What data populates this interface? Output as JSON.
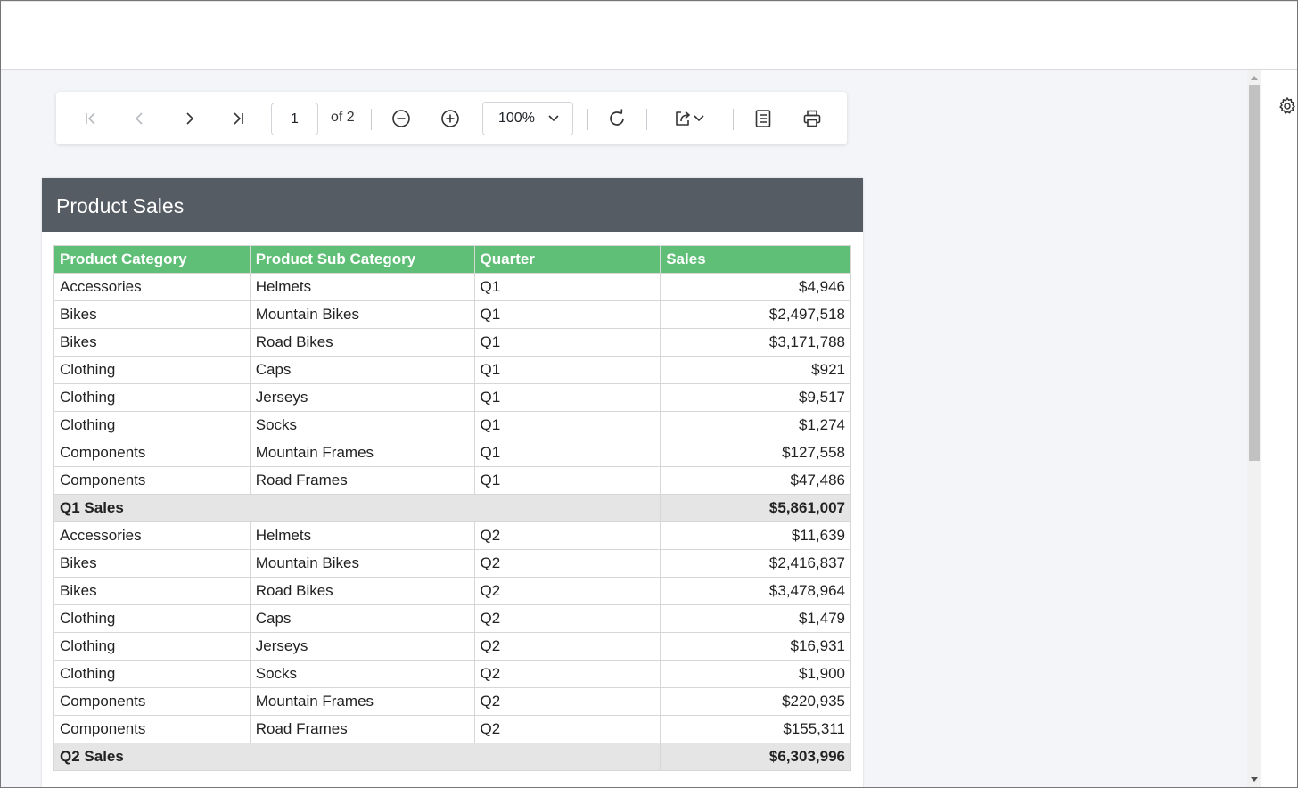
{
  "toolbar": {
    "first_icon": "first-page-icon",
    "prev_icon": "previous-page-icon",
    "next_icon": "next-page-icon",
    "last_icon": "last-page-icon",
    "page_value": "1",
    "of_pages": "of 2",
    "zoom_out_icon": "zoom-out-icon",
    "zoom_in_icon": "zoom-in-icon",
    "zoom_value": "100%",
    "refresh_icon": "refresh-icon",
    "export_icon": "export-icon",
    "print_layout_icon": "print-layout-icon",
    "print_icon": "print-icon"
  },
  "settings_icon": "gear-icon",
  "report": {
    "title": "Product Sales",
    "columns": [
      "Product Category",
      "Product Sub Category",
      "Quarter",
      "Sales"
    ],
    "rows": [
      {
        "type": "data",
        "category": "Accessories",
        "subcategory": "Helmets",
        "quarter": "Q1",
        "sales": "$4,946"
      },
      {
        "type": "data",
        "category": "Bikes",
        "subcategory": "Mountain Bikes",
        "quarter": "Q1",
        "sales": "$2,497,518"
      },
      {
        "type": "data",
        "category": "Bikes",
        "subcategory": "Road Bikes",
        "quarter": "Q1",
        "sales": "$3,171,788"
      },
      {
        "type": "data",
        "category": "Clothing",
        "subcategory": "Caps",
        "quarter": "Q1",
        "sales": "$921"
      },
      {
        "type": "data",
        "category": "Clothing",
        "subcategory": "Jerseys",
        "quarter": "Q1",
        "sales": "$9,517"
      },
      {
        "type": "data",
        "category": "Clothing",
        "subcategory": "Socks",
        "quarter": "Q1",
        "sales": "$1,274"
      },
      {
        "type": "data",
        "category": "Components",
        "subcategory": "Mountain Frames",
        "quarter": "Q1",
        "sales": "$127,558"
      },
      {
        "type": "data",
        "category": "Components",
        "subcategory": "Road Frames",
        "quarter": "Q1",
        "sales": "$47,486"
      },
      {
        "type": "subtotal",
        "label": "Q1 Sales",
        "sales": "$5,861,007"
      },
      {
        "type": "data",
        "category": "Accessories",
        "subcategory": "Helmets",
        "quarter": "Q2",
        "sales": "$11,639"
      },
      {
        "type": "data",
        "category": "Bikes",
        "subcategory": "Mountain Bikes",
        "quarter": "Q2",
        "sales": "$2,416,837"
      },
      {
        "type": "data",
        "category": "Bikes",
        "subcategory": "Road Bikes",
        "quarter": "Q2",
        "sales": "$3,478,964"
      },
      {
        "type": "data",
        "category": "Clothing",
        "subcategory": "Caps",
        "quarter": "Q2",
        "sales": "$1,479"
      },
      {
        "type": "data",
        "category": "Clothing",
        "subcategory": "Jerseys",
        "quarter": "Q2",
        "sales": "$16,931"
      },
      {
        "type": "data",
        "category": "Clothing",
        "subcategory": "Socks",
        "quarter": "Q2",
        "sales": "$1,900"
      },
      {
        "type": "data",
        "category": "Components",
        "subcategory": "Mountain Frames",
        "quarter": "Q2",
        "sales": "$220,935"
      },
      {
        "type": "data",
        "category": "Components",
        "subcategory": "Road Frames",
        "quarter": "Q2",
        "sales": "$155,311"
      },
      {
        "type": "subtotal",
        "label": "Q2 Sales",
        "sales": "$6,303,996"
      }
    ]
  }
}
